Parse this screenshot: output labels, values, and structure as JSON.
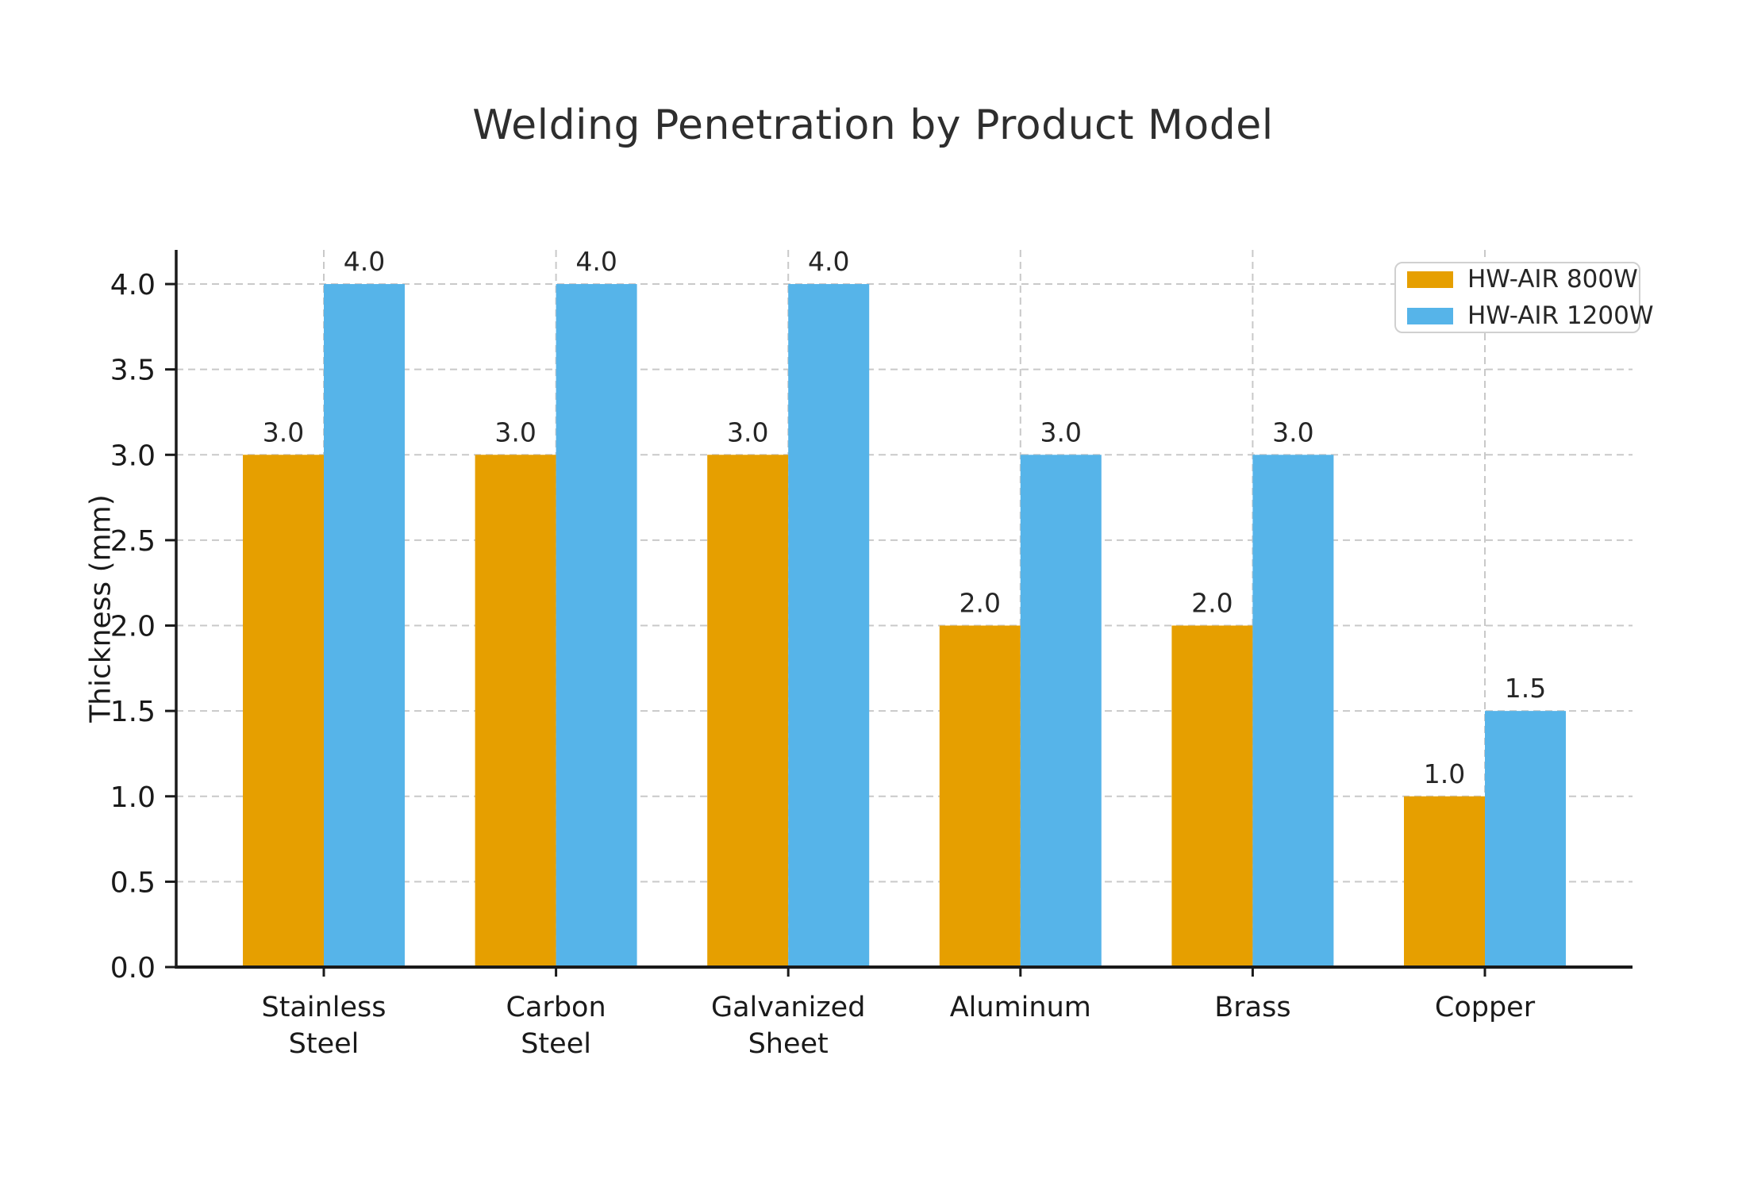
{
  "chart_data": {
    "type": "bar",
    "title": "Welding Penetration by Product Model",
    "xlabel": "",
    "ylabel": "Thickness (mm)",
    "categories": [
      "Stainless\nSteel",
      "Carbon\nSteel",
      "Galvanized\nSheet",
      "Aluminum",
      "Brass",
      "Copper"
    ],
    "series": [
      {
        "name": "HW-AIR 800W",
        "color": "#E69F00",
        "values": [
          3.0,
          3.0,
          3.0,
          2.0,
          2.0,
          1.0
        ],
        "bar_labels": [
          "3.0",
          "3.0",
          "3.0",
          "2.0",
          "2.0",
          "1.0"
        ]
      },
      {
        "name": "HW-AIR 1200W",
        "color": "#56B4E9",
        "values": [
          4.0,
          4.0,
          4.0,
          3.0,
          3.0,
          1.5
        ],
        "bar_labels": [
          "4.0",
          "4.0",
          "4.0",
          "3.0",
          "3.0",
          "1.5"
        ]
      }
    ],
    "yticks": [
      "0.0",
      "0.5",
      "1.0",
      "1.5",
      "2.0",
      "2.5",
      "3.0",
      "3.5",
      "4.0"
    ],
    "ylim": [
      0,
      4.2
    ],
    "grid": "dashed horizontal and vertical",
    "legend_position": "upper right",
    "colors": {
      "grid": "#c9c9c9",
      "axis": "#1a1a1a",
      "text": "#262626",
      "title": "#2e2e2e"
    }
  }
}
